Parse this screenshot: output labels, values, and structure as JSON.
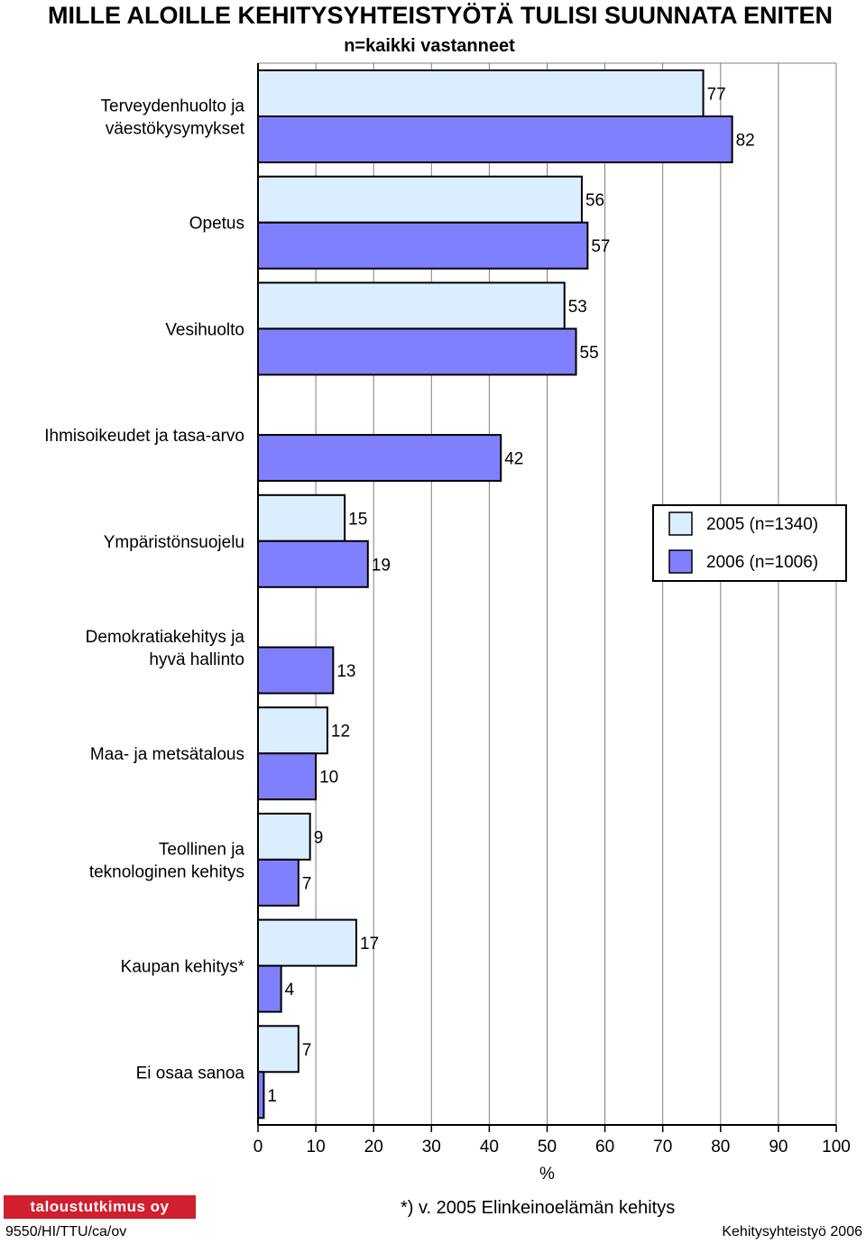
{
  "header": {
    "title": "MILLE ALOILLE KEHITYSYHTEISTYÖTÄ TULISI SUUNNATA ENITEN",
    "subtitle": "n=kaikki vastanneet"
  },
  "chart_data": {
    "type": "bar",
    "orientation": "horizontal",
    "categories": [
      "Terveydenhuolto ja väestökysymykset",
      "Opetus",
      "Vesihuolto",
      "Ihmisoikeudet ja tasa-arvo",
      "Ympäristönsuojelu",
      "Demokratiakehitys ja hyvä hallinto",
      "Maa- ja metsätalous",
      "Teollinen ja teknologinen kehitys",
      "Kaupan kehitys*",
      "Ei osaa sanoa"
    ],
    "category_lines": [
      [
        "Terveydenhuolto ja",
        "väestökysymykset"
      ],
      [
        "Opetus"
      ],
      [
        "Vesihuolto"
      ],
      [
        "Ihmisoikeudet ja tasa-arvo"
      ],
      [
        "Ympäristönsuojelu"
      ],
      [
        "Demokratiakehitys ja",
        "hyvä hallinto"
      ],
      [
        "Maa- ja metsätalous"
      ],
      [
        "Teollinen ja",
        "teknologinen kehitys"
      ],
      [
        "Kaupan kehitys*"
      ],
      [
        "Ei osaa sanoa"
      ]
    ],
    "series": [
      {
        "name": "2005 (n=1340)",
        "color": "#dbeeff",
        "values": [
          77,
          56,
          53,
          null,
          15,
          null,
          12,
          9,
          17,
          7
        ]
      },
      {
        "name": "2006 (n=1006)",
        "color": "#8080ff",
        "values": [
          82,
          57,
          55,
          42,
          19,
          13,
          10,
          7,
          4,
          1
        ]
      }
    ],
    "xlabel": "%",
    "xlim": [
      0,
      100
    ],
    "xticks": [
      0,
      10,
      20,
      30,
      40,
      50,
      60,
      70,
      80,
      90,
      100
    ],
    "grid": true,
    "legend_position": "right"
  },
  "footer": {
    "note": "*) v. 2005 Elinkeinoelämän kehitys",
    "left": "9550/HI/TTU/ca/ov",
    "right": "Kehitysyhteistyö 2006",
    "logo_text": "taloustutkimus oy"
  }
}
